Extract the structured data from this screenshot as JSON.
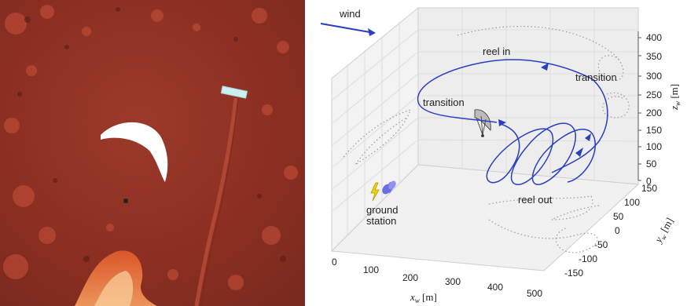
{
  "photo": {
    "description_free": true
  },
  "diagram": {
    "wind_label": "wind",
    "annotations": {
      "reel_in": "reel in",
      "transition_left": "transition",
      "transition_right": "transition",
      "reel_out": "reel out",
      "ground_station_line1": "ground",
      "ground_station_line2": "station"
    },
    "axes": {
      "x": {
        "label_var": "x",
        "label_sub": "w",
        "label_unit": " [m]",
        "ticks": [
          "0",
          "100",
          "200",
          "300",
          "400",
          "500"
        ]
      },
      "y": {
        "label_var": "y",
        "label_sub": "w",
        "label_unit": " [m]",
        "ticks": [
          "-150",
          "-100",
          "-50",
          "0",
          "50",
          "100",
          "150"
        ]
      },
      "z": {
        "label_var": "z",
        "label_sub": "w",
        "label_unit": " [m]",
        "ticks": [
          "0",
          "50",
          "100",
          "150",
          "200",
          "250",
          "300",
          "350",
          "400"
        ]
      }
    },
    "colors": {
      "trajectory": "#2a3fbf",
      "wind_arrow": "#2a3fbf",
      "lightning": "#f2d400",
      "winch": "#6a6fe0"
    }
  }
}
